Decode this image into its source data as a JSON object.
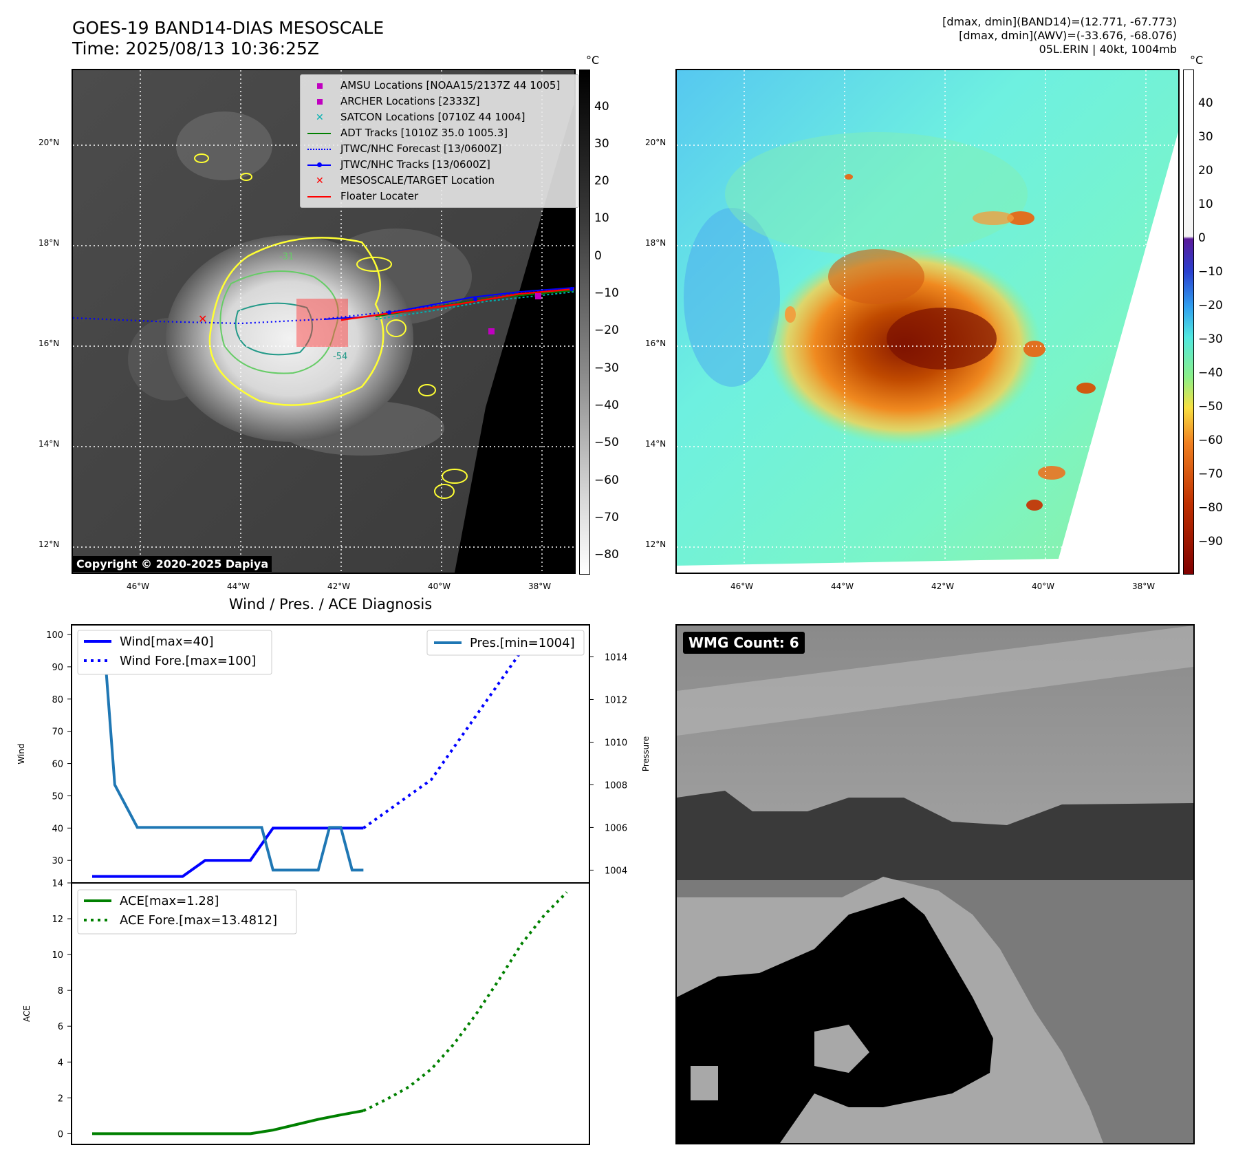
{
  "header": {
    "title_line1": "GOES-19 BAND14-DIAS MESOSCALE",
    "title_line2": "Time: 2025/08/13 10:36:25Z",
    "info_line1": "[dmax, dmin](BAND14)=(12.771, -67.773)",
    "info_line2": "[dmax, dmin](AWV)=(-33.676, -68.076)",
    "info_line3": "05L.ERIN | 40kt, 1004mb"
  },
  "map": {
    "lat_labels": [
      "20°N",
      "18°N",
      "16°N",
      "14°N",
      "12°N"
    ],
    "lon_labels": [
      "46°W",
      "44°W",
      "42°W",
      "40°W",
      "38°W"
    ],
    "contour_labels": [
      "-31",
      "-54"
    ],
    "copyright": "Copyright © 2020-2025 Dapiya",
    "legend": [
      {
        "label": "AMSU Locations [NOAA15/2137Z 44 1005]",
        "color": "#c000c0",
        "marker": "square"
      },
      {
        "label": "ARCHER Locations [2333Z]",
        "color": "#c000c0",
        "marker": "square"
      },
      {
        "label": "SATCON Locations [0710Z 44 1004]",
        "color": "#00b0b0",
        "marker": "x"
      },
      {
        "label": "ADT Tracks [1010Z 35.0 1005.3]",
        "color": "#008000",
        "marker": "line"
      },
      {
        "label": "JTWC/NHC Forecast [13/0600Z]",
        "color": "#0000ff",
        "marker": "dotted"
      },
      {
        "label": "JTWC/NHC Tracks [13/0600Z]",
        "color": "#0000ff",
        "marker": "line-dot"
      },
      {
        "label": "MESOSCALE/TARGET Location",
        "color": "#ff0000",
        "marker": "x"
      },
      {
        "label": "Floater Locater",
        "color": "#ff0000",
        "marker": "line"
      }
    ]
  },
  "colorbar_gray": {
    "unit": "°C",
    "ticks": [
      "40",
      "30",
      "20",
      "10",
      "0",
      "−10",
      "−20",
      "−30",
      "−40",
      "−50",
      "−60",
      "−70",
      "−80"
    ]
  },
  "colorbar_color": {
    "unit": "°C",
    "ticks": [
      "40",
      "30",
      "20",
      "10",
      "0",
      "−10",
      "−20",
      "−30",
      "−40",
      "−50",
      "−60",
      "−70",
      "−80",
      "−90"
    ]
  },
  "wmg": {
    "label": "WMG Count: 6"
  },
  "chart_data": [
    {
      "type": "line",
      "title": "Wind / Pres. / ACE Diagnosis",
      "ylabel": "Wind",
      "ylabel_right": "Pressure",
      "ylim": [
        23,
        103
      ],
      "ylim_right": [
        1003.4,
        1015.5
      ],
      "yticks": [
        30,
        40,
        50,
        60,
        70,
        80,
        90,
        100
      ],
      "yticks_right": [
        1004,
        1006,
        1008,
        1010,
        1012,
        1014
      ],
      "series": [
        {
          "name": "Wind[max=40]",
          "color": "#0000ff",
          "style": "solid",
          "x": [
            0,
            1,
            2,
            3,
            4,
            5,
            6,
            7,
            8,
            9,
            10,
            11,
            12
          ],
          "values": [
            25,
            25,
            25,
            25,
            25,
            30,
            30,
            30,
            40,
            40,
            40,
            40,
            40
          ]
        },
        {
          "name": "Wind Fore.[max=100]",
          "color": "#0000ff",
          "style": "dotted",
          "x": [
            12,
            13,
            14,
            15,
            16,
            17,
            18,
            19,
            20,
            21
          ],
          "values": [
            40,
            45,
            50,
            55,
            65,
            75,
            85,
            95,
            100,
            100
          ]
        },
        {
          "name": "Pres.[min=1004]",
          "color": "#1f77b4",
          "style": "solid",
          "axis": "right",
          "x": [
            0,
            0.5,
            1,
            2,
            3,
            4,
            5,
            6,
            7,
            7.5,
            8,
            9,
            10,
            10.5,
            11,
            11.5,
            12
          ],
          "values": [
            1015,
            1015,
            1008,
            1006,
            1006,
            1006,
            1006,
            1006,
            1006,
            1006,
            1004,
            1004,
            1004,
            1006,
            1006,
            1004,
            1004
          ]
        }
      ]
    },
    {
      "type": "line",
      "ylabel": "ACE",
      "ylim": [
        -0.6,
        14
      ],
      "yticks": [
        0,
        2,
        4,
        6,
        8,
        10,
        12,
        14
      ],
      "series": [
        {
          "name": "ACE[max=1.28]",
          "color": "#008000",
          "style": "solid",
          "x": [
            0,
            1,
            2,
            3,
            4,
            5,
            6,
            7,
            8,
            9,
            10,
            11,
            12
          ],
          "values": [
            0,
            0,
            0,
            0,
            0,
            0,
            0,
            0,
            0.2,
            0.5,
            0.8,
            1.05,
            1.28
          ]
        },
        {
          "name": "ACE Fore.[max=13.4812]",
          "color": "#008000",
          "style": "dotted",
          "x": [
            12,
            13,
            14,
            15,
            16,
            17,
            18,
            19,
            20,
            21
          ],
          "values": [
            1.28,
            1.9,
            2.6,
            3.6,
            5.0,
            6.7,
            8.6,
            10.6,
            12.2,
            13.4812
          ]
        }
      ]
    }
  ]
}
